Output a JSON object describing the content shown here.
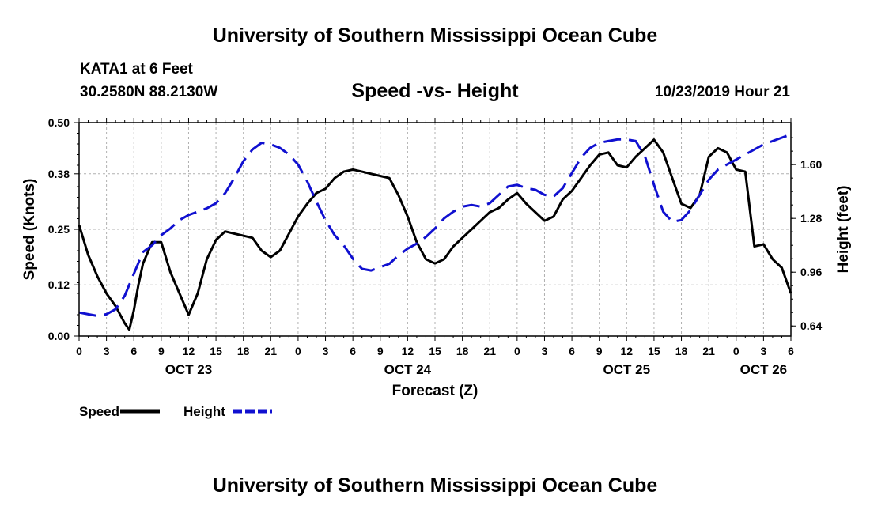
{
  "header": {
    "title": "University of Southern Mississippi Ocean Cube",
    "station": "KATA1 at 6 Feet",
    "coordinates": "30.2580N 88.2130W",
    "subtitle": "Speed -vs- Height",
    "run_time": "10/23/2019 Hour 21"
  },
  "footer": {
    "title": "University of Southern Mississippi Ocean Cube"
  },
  "chart_data": {
    "type": "line",
    "title": "Speed -vs- Height",
    "xlabel": "Forecast (Z)",
    "ylabel_left": "Speed (Knots)",
    "ylabel_right": "Height (feet)",
    "x_unit": "forecast hours from 00Z Oct 23",
    "xlim": [
      -3,
      75
    ],
    "ylim_left": [
      0,
      0.5
    ],
    "ylim_right": [
      0.58,
      1.85
    ],
    "x_ticks": [
      -3,
      0,
      3,
      6,
      9,
      12,
      15,
      18,
      21,
      24,
      27,
      30,
      33,
      36,
      39,
      42,
      45,
      48,
      51,
      54,
      57,
      60,
      63,
      66,
      69,
      72,
      75
    ],
    "x_tick_labels": [
      "0",
      "3",
      "6",
      "9",
      "12",
      "15",
      "18",
      "21",
      "0",
      "3",
      "6",
      "9",
      "12",
      "15",
      "18",
      "21",
      "0",
      "3",
      "6",
      "9",
      "12",
      "15",
      "18",
      "21",
      "0",
      "3",
      "6"
    ],
    "date_labels": [
      {
        "x": 9,
        "label": "OCT 23"
      },
      {
        "x": 33,
        "label": "OCT 24"
      },
      {
        "x": 57,
        "label": "OCT 25"
      },
      {
        "x": 72,
        "label": "OCT 26"
      }
    ],
    "y_ticks_left": [
      0.0,
      0.12,
      0.25,
      0.38,
      0.5
    ],
    "y_tick_labels_left": [
      "0.00",
      "0.12",
      "0.25",
      "0.38",
      "0.50"
    ],
    "y_ticks_right": [
      0.64,
      0.96,
      1.28,
      1.6
    ],
    "y_tick_labels_right": [
      "0.64",
      "0.96",
      "1.28",
      "1.60"
    ],
    "grid": true,
    "legend": [
      {
        "name": "Speed",
        "color": "#000000",
        "dash": "solid"
      },
      {
        "name": "Height",
        "color": "#1010d0",
        "dash": "dashed"
      }
    ],
    "series": [
      {
        "name": "Speed",
        "axis": "left",
        "color": "#000000",
        "x": [
          -3,
          -2,
          -1,
          0,
          1,
          2,
          2.5,
          3,
          3.5,
          4,
          5,
          6,
          7,
          8,
          9,
          10,
          11,
          12,
          13,
          14,
          15,
          16,
          17,
          18,
          19,
          20,
          21,
          22,
          23,
          24,
          25,
          26,
          27,
          28,
          29,
          30,
          31,
          32,
          33,
          34,
          35,
          36,
          37,
          38,
          39,
          40,
          41,
          42,
          43,
          44,
          45,
          46,
          47,
          48,
          49,
          50,
          51,
          52,
          53,
          54,
          55,
          56,
          57,
          58,
          59,
          60,
          61,
          62,
          63,
          64,
          65,
          66,
          67,
          68,
          69,
          70,
          71,
          72,
          73,
          74,
          75
        ],
        "y": [
          0.26,
          0.19,
          0.14,
          0.1,
          0.07,
          0.03,
          0.015,
          0.06,
          0.12,
          0.17,
          0.22,
          0.22,
          0.15,
          0.1,
          0.05,
          0.1,
          0.18,
          0.225,
          0.245,
          0.24,
          0.235,
          0.23,
          0.2,
          0.185,
          0.2,
          0.24,
          0.28,
          0.31,
          0.335,
          0.345,
          0.37,
          0.385,
          0.39,
          0.385,
          0.38,
          0.375,
          0.37,
          0.33,
          0.28,
          0.22,
          0.18,
          0.17,
          0.18,
          0.21,
          0.23,
          0.25,
          0.27,
          0.29,
          0.3,
          0.32,
          0.335,
          0.31,
          0.29,
          0.27,
          0.28,
          0.32,
          0.34,
          0.37,
          0.4,
          0.425,
          0.43,
          0.4,
          0.395,
          0.42,
          0.44,
          0.46,
          0.43,
          0.37,
          0.31,
          0.3,
          0.33,
          0.42,
          0.44,
          0.43,
          0.39,
          0.385,
          0.21,
          0.215,
          0.18,
          0.16,
          0.1
        ]
      },
      {
        "name": "Height",
        "axis": "right",
        "color": "#1010d0",
        "x": [
          -3,
          -2,
          -1,
          0,
          1,
          2,
          3,
          4,
          5,
          6,
          7,
          8,
          9,
          10,
          11,
          12,
          13,
          14,
          15,
          16,
          17,
          18,
          19,
          20,
          21,
          22,
          23,
          24,
          25,
          26,
          27,
          28,
          29,
          30,
          31,
          32,
          33,
          34,
          35,
          36,
          37,
          38,
          39,
          40,
          41,
          42,
          43,
          44,
          45,
          46,
          47,
          48,
          49,
          50,
          51,
          52,
          53,
          54,
          55,
          56,
          57,
          58,
          59,
          60,
          61,
          62,
          63,
          64,
          65,
          66,
          67,
          68,
          69,
          70,
          71,
          72,
          73,
          74,
          75
        ],
        "y": [
          0.72,
          0.71,
          0.7,
          0.71,
          0.74,
          0.82,
          0.95,
          1.08,
          1.12,
          1.18,
          1.22,
          1.27,
          1.3,
          1.32,
          1.34,
          1.37,
          1.43,
          1.52,
          1.62,
          1.69,
          1.73,
          1.72,
          1.7,
          1.66,
          1.6,
          1.5,
          1.38,
          1.27,
          1.18,
          1.12,
          1.04,
          0.98,
          0.97,
          0.99,
          1.01,
          1.06,
          1.1,
          1.13,
          1.17,
          1.22,
          1.28,
          1.32,
          1.35,
          1.36,
          1.35,
          1.37,
          1.42,
          1.47,
          1.48,
          1.46,
          1.45,
          1.42,
          1.41,
          1.46,
          1.55,
          1.64,
          1.7,
          1.73,
          1.74,
          1.75,
          1.75,
          1.74,
          1.65,
          1.48,
          1.32,
          1.26,
          1.27,
          1.33,
          1.42,
          1.51,
          1.57,
          1.6,
          1.63,
          1.66,
          1.69,
          1.72,
          1.74,
          1.76,
          1.78
        ]
      }
    ]
  }
}
